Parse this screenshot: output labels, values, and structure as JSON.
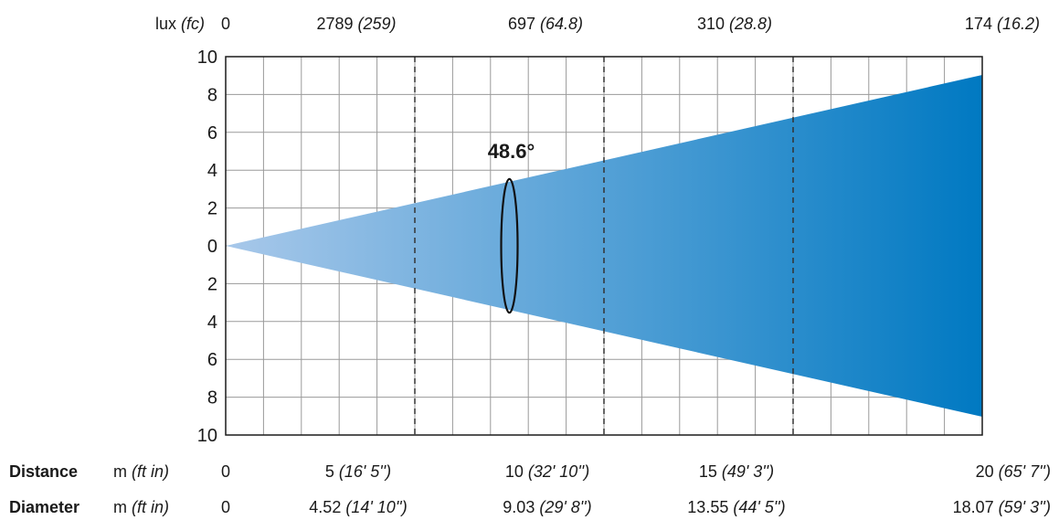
{
  "chart_data": {
    "type": "area",
    "beam_angle_label": "48.6°",
    "lux_header": {
      "unit": "lux",
      "unit_alt": "(fc)"
    },
    "lux_values": [
      {
        "value": "0",
        "alt": ""
      },
      {
        "value": "2789",
        "alt": "(259)"
      },
      {
        "value": "697",
        "alt": "(64.8)"
      },
      {
        "value": "310",
        "alt": "(28.8)"
      },
      {
        "value": "174",
        "alt": "(16.2)"
      }
    ],
    "y_ticks": [
      "10",
      "8",
      "6",
      "4",
      "2",
      "0",
      "2",
      "4",
      "6",
      "8",
      "10"
    ],
    "ylim": [
      -10,
      10
    ],
    "xlim": [
      0,
      20
    ],
    "beam": {
      "distance_m": [
        0,
        20
      ],
      "half_width_m": [
        0,
        9.035
      ]
    },
    "rows": [
      {
        "label": "Distance",
        "unit": "m",
        "unit_alt": "(ft in)",
        "values": [
          {
            "value": "0",
            "alt": ""
          },
          {
            "value": "5",
            "alt": "(16' 5'')"
          },
          {
            "value": "10",
            "alt": "(32' 10'')"
          },
          {
            "value": "15",
            "alt": "(49' 3'')"
          },
          {
            "value": "20",
            "alt": "(65' 7'')"
          }
        ]
      },
      {
        "label": "Diameter",
        "unit": "m",
        "unit_alt": "(ft in)",
        "values": [
          {
            "value": "0",
            "alt": ""
          },
          {
            "value": "4.52",
            "alt": "(14' 10'')"
          },
          {
            "value": "9.03",
            "alt": "(29' 8'')"
          },
          {
            "value": "13.55",
            "alt": "(44' 5'')"
          },
          {
            "value": "18.07",
            "alt": "(59' 3'')"
          }
        ]
      }
    ],
    "colors": {
      "beam_start": "#a8c8ea",
      "beam_end": "#0079c2",
      "grid": "#9a9a9a",
      "axis": "#1a1a1a"
    }
  }
}
